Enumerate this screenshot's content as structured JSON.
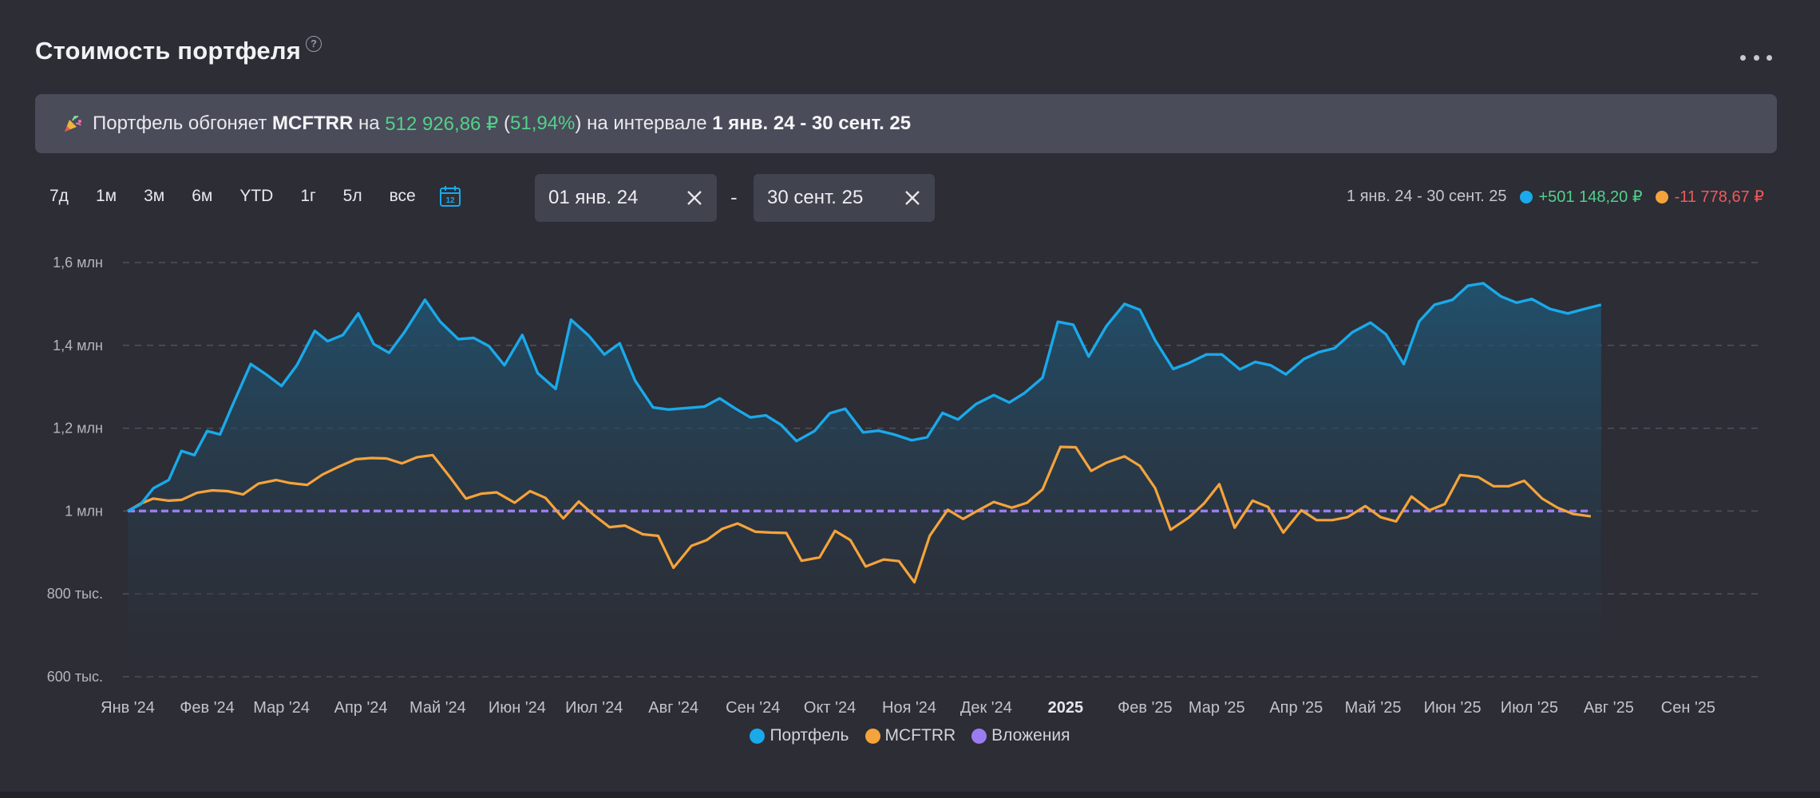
{
  "header": {
    "title": "Стоимость портфеля",
    "help": "?"
  },
  "banner": {
    "prefix": "Портфель обгоняет ",
    "index": "MCFTRR",
    "mid1": " на ",
    "amount": "512 926,86 ₽",
    "mid2": " (",
    "percent": "51,94%",
    "mid3": ") на интервале ",
    "interval": "1 янв. 24 - 30 сент. 25"
  },
  "ranges": [
    "7д",
    "1м",
    "3м",
    "6м",
    "YTD",
    "1г",
    "5л",
    "все"
  ],
  "date_from": "01 янв. 24",
  "date_sep": "-",
  "date_to": "30 сент. 25",
  "summary": {
    "interval": "1 янв. 24 - 30 сент. 25",
    "portfolio_change": "+501 148,20 ₽",
    "index_change": "-11 778,67 ₽"
  },
  "colors": {
    "portfolio": "#1aa9ea",
    "index": "#f5a33b",
    "investments": "#9b7cf0",
    "positive": "#52d18a",
    "negative": "#ef5b5b"
  },
  "chart_data": {
    "type": "line",
    "title": "",
    "ylim": [
      600000,
      1600000
    ],
    "y_ticks": [
      {
        "value": 1600000,
        "label": "1,6 млн"
      },
      {
        "value": 1400000,
        "label": "1,4 млн"
      },
      {
        "value": 1200000,
        "label": "1,2 млн"
      },
      {
        "value": 1000000,
        "label": "1 млн"
      },
      {
        "value": 800000,
        "label": "800 тыс."
      },
      {
        "value": 600000,
        "label": "600 тыс."
      }
    ],
    "x_range": [
      "2024-01-01",
      "2025-09-30"
    ],
    "x_ticks": [
      {
        "date": "2024-01-01",
        "label": "Янв '24",
        "bold": false
      },
      {
        "date": "2024-02-01",
        "label": "Фев '24",
        "bold": false
      },
      {
        "date": "2024-03-01",
        "label": "Мар '24",
        "bold": false
      },
      {
        "date": "2024-04-01",
        "label": "Апр '24",
        "bold": false
      },
      {
        "date": "2024-05-01",
        "label": "Май '24",
        "bold": false
      },
      {
        "date": "2024-06-01",
        "label": "Июн '24",
        "bold": false
      },
      {
        "date": "2024-07-01",
        "label": "Июл '24",
        "bold": false
      },
      {
        "date": "2024-08-01",
        "label": "Авг '24",
        "bold": false
      },
      {
        "date": "2024-09-01",
        "label": "Сен '24",
        "bold": false
      },
      {
        "date": "2024-10-01",
        "label": "Окт '24",
        "bold": false
      },
      {
        "date": "2024-11-01",
        "label": "Ноя '24",
        "bold": false
      },
      {
        "date": "2024-12-01",
        "label": "Дек '24",
        "bold": false
      },
      {
        "date": "2025-01-01",
        "label": "2025",
        "bold": true
      },
      {
        "date": "2025-02-01",
        "label": "Фев '25",
        "bold": false
      },
      {
        "date": "2025-03-01",
        "label": "Мар '25",
        "bold": false
      },
      {
        "date": "2025-04-01",
        "label": "Апр '25",
        "bold": false
      },
      {
        "date": "2025-05-01",
        "label": "Май '25",
        "bold": false
      },
      {
        "date": "2025-06-01",
        "label": "Июн '25",
        "bold": false
      },
      {
        "date": "2025-07-01",
        "label": "Июл '25",
        "bold": false
      },
      {
        "date": "2025-08-01",
        "label": "Авг '25",
        "bold": false
      },
      {
        "date": "2025-09-01",
        "label": "Сен '25",
        "bold": false
      }
    ],
    "grid": true,
    "legend_position": "bottom",
    "series": [
      {
        "name": "Портфель",
        "color": "#1aa9ea",
        "points": [
          [
            "2024-01-01",
            1000000
          ],
          [
            "2024-01-06",
            1016000
          ],
          [
            "2024-01-11",
            1055000
          ],
          [
            "2024-01-17",
            1075000
          ],
          [
            "2024-01-22",
            1145000
          ],
          [
            "2024-01-27",
            1135000
          ],
          [
            "2024-02-01",
            1193000
          ],
          [
            "2024-02-06",
            1185000
          ],
          [
            "2024-02-11",
            1257000
          ],
          [
            "2024-02-18",
            1355000
          ],
          [
            "2024-02-24",
            1330000
          ],
          [
            "2024-03-01",
            1302000
          ],
          [
            "2024-03-07",
            1352000
          ],
          [
            "2024-03-14",
            1435000
          ],
          [
            "2024-03-19",
            1410000
          ],
          [
            "2024-03-25",
            1425000
          ],
          [
            "2024-03-31",
            1477000
          ],
          [
            "2024-04-06",
            1403000
          ],
          [
            "2024-04-12",
            1382000
          ],
          [
            "2024-04-18",
            1432000
          ],
          [
            "2024-04-26",
            1510000
          ],
          [
            "2024-05-02",
            1457000
          ],
          [
            "2024-05-09",
            1415000
          ],
          [
            "2024-05-15",
            1418000
          ],
          [
            "2024-05-21",
            1398000
          ],
          [
            "2024-05-27",
            1352000
          ],
          [
            "2024-06-03",
            1425000
          ],
          [
            "2024-06-09",
            1333000
          ],
          [
            "2024-06-16",
            1295000
          ],
          [
            "2024-06-22",
            1462000
          ],
          [
            "2024-06-29",
            1423000
          ],
          [
            "2024-07-05",
            1378000
          ],
          [
            "2024-07-11",
            1405000
          ],
          [
            "2024-07-17",
            1315000
          ],
          [
            "2024-07-24",
            1250000
          ],
          [
            "2024-07-30",
            1245000
          ],
          [
            "2024-08-13",
            1252000
          ],
          [
            "2024-08-19",
            1272000
          ],
          [
            "2024-08-25",
            1248000
          ],
          [
            "2024-08-31",
            1226000
          ],
          [
            "2024-09-06",
            1231000
          ],
          [
            "2024-09-12",
            1208000
          ],
          [
            "2024-09-18",
            1169000
          ],
          [
            "2024-09-25",
            1193000
          ],
          [
            "2024-10-01",
            1236000
          ],
          [
            "2024-10-07",
            1247000
          ],
          [
            "2024-10-14",
            1190000
          ],
          [
            "2024-10-20",
            1194000
          ],
          [
            "2024-10-26",
            1185000
          ],
          [
            "2024-11-02",
            1171000
          ],
          [
            "2024-11-08",
            1178000
          ],
          [
            "2024-11-14",
            1237000
          ],
          [
            "2024-11-20",
            1221000
          ],
          [
            "2024-11-27",
            1258000
          ],
          [
            "2024-12-04",
            1280000
          ],
          [
            "2024-12-10",
            1262000
          ],
          [
            "2024-12-16",
            1285000
          ],
          [
            "2024-12-23",
            1322000
          ],
          [
            "2024-12-29",
            1457000
          ],
          [
            "2025-01-04",
            1450000
          ],
          [
            "2025-01-10",
            1373000
          ],
          [
            "2025-01-17",
            1447000
          ],
          [
            "2025-01-24",
            1500000
          ],
          [
            "2025-01-30",
            1486000
          ],
          [
            "2025-02-05",
            1412000
          ],
          [
            "2025-02-12",
            1343000
          ],
          [
            "2025-02-18",
            1357000
          ],
          [
            "2025-02-25",
            1378000
          ],
          [
            "2025-03-03",
            1378000
          ],
          [
            "2025-03-10",
            1342000
          ],
          [
            "2025-03-16",
            1360000
          ],
          [
            "2025-03-22",
            1352000
          ],
          [
            "2025-03-28",
            1330000
          ],
          [
            "2025-04-04",
            1367000
          ],
          [
            "2025-04-10",
            1384000
          ],
          [
            "2025-04-16",
            1393000
          ],
          [
            "2025-04-23",
            1432000
          ],
          [
            "2025-04-30",
            1455000
          ],
          [
            "2025-05-06",
            1427000
          ],
          [
            "2025-05-13",
            1355000
          ],
          [
            "2025-05-19",
            1458000
          ],
          [
            "2025-05-25",
            1498000
          ],
          [
            "2025-06-01",
            1510000
          ],
          [
            "2025-06-07",
            1544000
          ],
          [
            "2025-06-13",
            1550000
          ],
          [
            "2025-06-20",
            1518000
          ],
          [
            "2025-06-26",
            1503000
          ],
          [
            "2025-07-02",
            1512000
          ],
          [
            "2025-07-09",
            1488000
          ],
          [
            "2025-07-16",
            1477000
          ],
          [
            "2025-07-22",
            1487000
          ],
          [
            "2025-07-29",
            1498000
          ]
        ]
      },
      {
        "name": "MCFTRR",
        "color": "#f5a33b",
        "points": [
          [
            "2024-01-01",
            1000000
          ],
          [
            "2024-01-06",
            1018000
          ],
          [
            "2024-01-11",
            1030000
          ],
          [
            "2024-01-17",
            1025000
          ],
          [
            "2024-01-22",
            1027000
          ],
          [
            "2024-01-28",
            1044000
          ],
          [
            "2024-02-03",
            1050000
          ],
          [
            "2024-02-09",
            1048000
          ],
          [
            "2024-02-15",
            1040000
          ],
          [
            "2024-02-21",
            1066000
          ],
          [
            "2024-02-28",
            1075000
          ],
          [
            "2024-03-04",
            1068000
          ],
          [
            "2024-03-11",
            1063000
          ],
          [
            "2024-03-17",
            1088000
          ],
          [
            "2024-03-23",
            1106000
          ],
          [
            "2024-03-30",
            1125000
          ],
          [
            "2024-04-05",
            1128000
          ],
          [
            "2024-04-11",
            1127000
          ],
          [
            "2024-04-17",
            1115000
          ],
          [
            "2024-04-23",
            1130000
          ],
          [
            "2024-04-29",
            1135000
          ],
          [
            "2024-05-06",
            1080000
          ],
          [
            "2024-05-12",
            1030000
          ],
          [
            "2024-05-18",
            1042000
          ],
          [
            "2024-05-24",
            1045000
          ],
          [
            "2024-05-31",
            1020000
          ],
          [
            "2024-06-06",
            1048000
          ],
          [
            "2024-06-12",
            1032000
          ],
          [
            "2024-06-19",
            982000
          ],
          [
            "2024-06-25",
            1023000
          ],
          [
            "2024-07-01",
            990000
          ],
          [
            "2024-07-07",
            961000
          ],
          [
            "2024-07-13",
            965000
          ],
          [
            "2024-07-20",
            944000
          ],
          [
            "2024-07-26",
            940000
          ],
          [
            "2024-08-01",
            863000
          ],
          [
            "2024-08-08",
            916000
          ],
          [
            "2024-08-14",
            930000
          ],
          [
            "2024-08-20",
            957000
          ],
          [
            "2024-08-26",
            970000
          ],
          [
            "2024-09-02",
            950000
          ],
          [
            "2024-09-08",
            948000
          ],
          [
            "2024-09-14",
            947000
          ],
          [
            "2024-09-20",
            880000
          ],
          [
            "2024-09-27",
            888000
          ],
          [
            "2024-10-03",
            952000
          ],
          [
            "2024-10-09",
            930000
          ],
          [
            "2024-10-15",
            866000
          ],
          [
            "2024-10-22",
            883000
          ],
          [
            "2024-10-28",
            879000
          ],
          [
            "2024-11-03",
            828000
          ],
          [
            "2024-11-09",
            940000
          ],
          [
            "2024-11-16",
            1003000
          ],
          [
            "2024-11-22",
            981000
          ],
          [
            "2024-11-28",
            1002000
          ],
          [
            "2024-12-04",
            1022000
          ],
          [
            "2024-12-11",
            1008000
          ],
          [
            "2024-12-17",
            1020000
          ],
          [
            "2024-12-23",
            1052000
          ],
          [
            "2024-12-30",
            1155000
          ],
          [
            "2025-01-05",
            1154000
          ],
          [
            "2025-01-11",
            1097000
          ],
          [
            "2025-01-17",
            1117000
          ],
          [
            "2025-01-24",
            1132000
          ],
          [
            "2025-01-30",
            1109000
          ],
          [
            "2025-02-05",
            1055000
          ],
          [
            "2025-02-11",
            955000
          ],
          [
            "2025-02-18",
            984000
          ],
          [
            "2025-02-24",
            1018000
          ],
          [
            "2025-03-02",
            1065000
          ],
          [
            "2025-03-08",
            960000
          ],
          [
            "2025-03-15",
            1025000
          ],
          [
            "2025-03-21",
            1010000
          ],
          [
            "2025-03-27",
            948000
          ],
          [
            "2025-04-03",
            1002000
          ],
          [
            "2025-04-09",
            978000
          ],
          [
            "2025-04-15",
            978000
          ],
          [
            "2025-04-21",
            985000
          ],
          [
            "2025-04-28",
            1012000
          ],
          [
            "2025-05-04",
            985000
          ],
          [
            "2025-05-10",
            975000
          ],
          [
            "2025-05-16",
            1035000
          ],
          [
            "2025-05-23",
            1002000
          ],
          [
            "2025-05-29",
            1017000
          ],
          [
            "2025-06-04",
            1087000
          ],
          [
            "2025-06-11",
            1082000
          ],
          [
            "2025-06-17",
            1060000
          ],
          [
            "2025-06-23",
            1060000
          ],
          [
            "2025-06-29",
            1073000
          ],
          [
            "2025-07-06",
            1030000
          ],
          [
            "2025-07-12",
            1008000
          ],
          [
            "2025-07-18",
            993000
          ],
          [
            "2025-07-25",
            987000
          ]
        ]
      },
      {
        "name": "Вложения",
        "color": "#9b7cf0",
        "points": [
          [
            "2024-01-01",
            1000000
          ],
          [
            "2025-07-25",
            1000000
          ]
        ]
      }
    ]
  }
}
